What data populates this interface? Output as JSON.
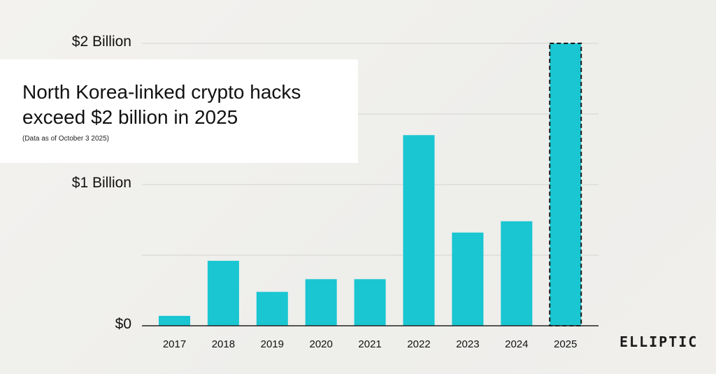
{
  "chart_data": {
    "type": "bar",
    "title": "North Korea-linked crypto hacks exceed $2 billion in 2025",
    "subtitle": "(Data as of October 3 2025)",
    "categories": [
      "2017",
      "2018",
      "2019",
      "2020",
      "2021",
      "2022",
      "2023",
      "2024",
      "2025"
    ],
    "values": [
      0.07,
      0.46,
      0.24,
      0.33,
      0.33,
      1.35,
      0.66,
      0.74,
      2.0
    ],
    "ylim": [
      0,
      2
    ],
    "yticks": [
      {
        "value": 0,
        "label": "$0"
      },
      {
        "value": 1,
        "label": "$1 Billion"
      },
      {
        "value": 2,
        "label": "$2 Billion"
      }
    ],
    "gridlines": [
      0,
      0.5,
      1,
      1.5,
      2
    ],
    "grid": true,
    "legend": "none",
    "bar_color": "#19c6d1",
    "highlight_category": "2025",
    "highlight_style": "dashed-outline"
  },
  "branding": {
    "logo_text": "ELLIPTIC"
  }
}
